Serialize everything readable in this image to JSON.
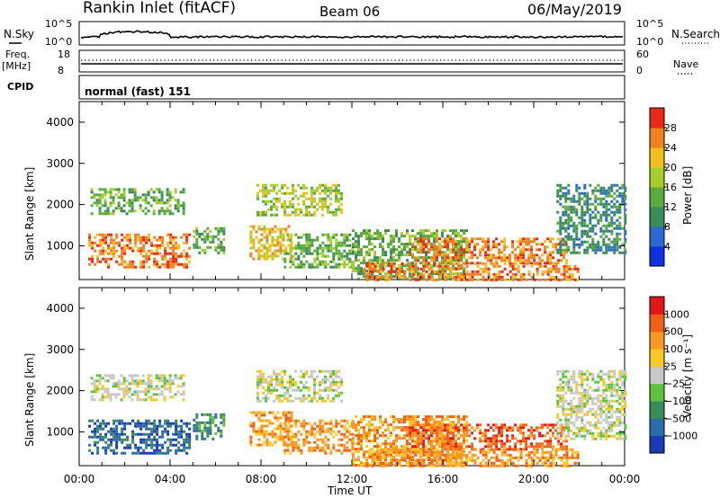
{
  "header": {
    "station": "Rankin Inlet (fitACF)",
    "beam": "Beam 06",
    "date": "06/May/2019"
  },
  "strip_labels": {
    "nsky": "N.Sky",
    "nsearch": "N.Search",
    "freq_line1": "Freq.",
    "freq_line2": "[MHz]",
    "nave": "Nave",
    "cpid": "CPID",
    "cpid_value": "normal (fast) 151",
    "nsky_ticks": [
      "10^5",
      "10^0"
    ],
    "nsearch_ticks": [
      "10^5",
      "10^0"
    ],
    "freq_ticks": [
      "18",
      "8"
    ],
    "nave_ticks": [
      "60",
      "0"
    ]
  },
  "chart_data": [
    {
      "type": "heatmap",
      "name": "power-panel",
      "ylabel": "Slant Range [km]",
      "xlabel": "Time UT",
      "xlim": [
        0,
        24
      ],
      "ylim": [
        180,
        4500
      ],
      "x_ticks": [
        "00:00",
        "04:00",
        "08:00",
        "12:00",
        "16:00",
        "20:00",
        "00:00"
      ],
      "y_ticks": [
        1000,
        2000,
        3000,
        4000
      ],
      "colorbar": {
        "label": "Power [dB]",
        "ticks": [
          "4",
          "8",
          "12",
          "16",
          "20",
          "24",
          "28"
        ],
        "colors": [
          "#1030e0",
          "#2a6ad0",
          "#3a8a5a",
          "#5aaa40",
          "#a8cc30",
          "#f0c020",
          "#f08020",
          "#e82818"
        ]
      },
      "regions": [
        {
          "x0": 0.5,
          "x1": 4.6,
          "r0": 1800,
          "r1": 2400,
          "level": 3
        },
        {
          "x0": 0.4,
          "x1": 4.9,
          "r0": 450,
          "r1": 1300,
          "level": 6
        },
        {
          "x0": 5.0,
          "x1": 6.4,
          "r0": 850,
          "r1": 1450,
          "level": 3
        },
        {
          "x0": 7.8,
          "x1": 11.6,
          "r0": 1750,
          "r1": 2500,
          "level": 4
        },
        {
          "x0": 7.5,
          "x1": 9.3,
          "r0": 700,
          "r1": 1500,
          "level": 5
        },
        {
          "x0": 9.0,
          "x1": 12.0,
          "r0": 500,
          "r1": 1300,
          "level": 3
        },
        {
          "x0": 12.0,
          "x1": 17.0,
          "r0": 200,
          "r1": 1400,
          "level": 3
        },
        {
          "x0": 14.5,
          "x1": 21.5,
          "r0": 600,
          "r1": 1200,
          "level": 6
        },
        {
          "x0": 12.5,
          "x1": 22.0,
          "r0": 200,
          "r1": 600,
          "level": 6
        },
        {
          "x0": 21.0,
          "x1": 24.0,
          "r0": 800,
          "r1": 2500,
          "level": 2
        }
      ]
    },
    {
      "type": "heatmap",
      "name": "velocity-panel",
      "ylabel": "Slant Range [km]",
      "xlabel": "Time UT",
      "xlim": [
        0,
        24
      ],
      "ylim": [
        180,
        4500
      ],
      "x_ticks": [
        "00:00",
        "04:00",
        "08:00",
        "12:00",
        "16:00",
        "20:00",
        "00:00"
      ],
      "y_ticks": [
        1000,
        2000,
        3000,
        4000
      ],
      "colorbar": {
        "label": "Velocity [m s⁻¹]",
        "ticks": [
          "1000",
          "500",
          "100",
          "25",
          "−25",
          "−100",
          "−500",
          "−1000"
        ],
        "colors": [
          "#1a3ab8",
          "#2e6aa8",
          "#3a8a5a",
          "#60c040",
          "#c8c8c8",
          "#f8c828",
          "#f89820",
          "#f06018",
          "#e01818"
        ]
      },
      "regions": [
        {
          "x0": 0.5,
          "x1": 4.6,
          "r0": 1800,
          "r1": 2400,
          "level": 4
        },
        {
          "x0": 0.4,
          "x1": 4.9,
          "r0": 450,
          "r1": 1300,
          "level": 1
        },
        {
          "x0": 5.0,
          "x1": 6.4,
          "r0": 850,
          "r1": 1450,
          "level": 2
        },
        {
          "x0": 7.8,
          "x1": 11.6,
          "r0": 1750,
          "r1": 2500,
          "level": 4
        },
        {
          "x0": 7.5,
          "x1": 9.3,
          "r0": 700,
          "r1": 1500,
          "level": 6
        },
        {
          "x0": 9.0,
          "x1": 12.0,
          "r0": 500,
          "r1": 1300,
          "level": 6
        },
        {
          "x0": 12.0,
          "x1": 17.0,
          "r0": 200,
          "r1": 1400,
          "level": 6
        },
        {
          "x0": 14.5,
          "x1": 21.5,
          "r0": 600,
          "r1": 1200,
          "level": 7
        },
        {
          "x0": 12.5,
          "x1": 22.0,
          "r0": 200,
          "r1": 600,
          "level": 6
        },
        {
          "x0": 21.0,
          "x1": 24.0,
          "r0": 800,
          "r1": 2500,
          "level": 4
        }
      ]
    }
  ]
}
